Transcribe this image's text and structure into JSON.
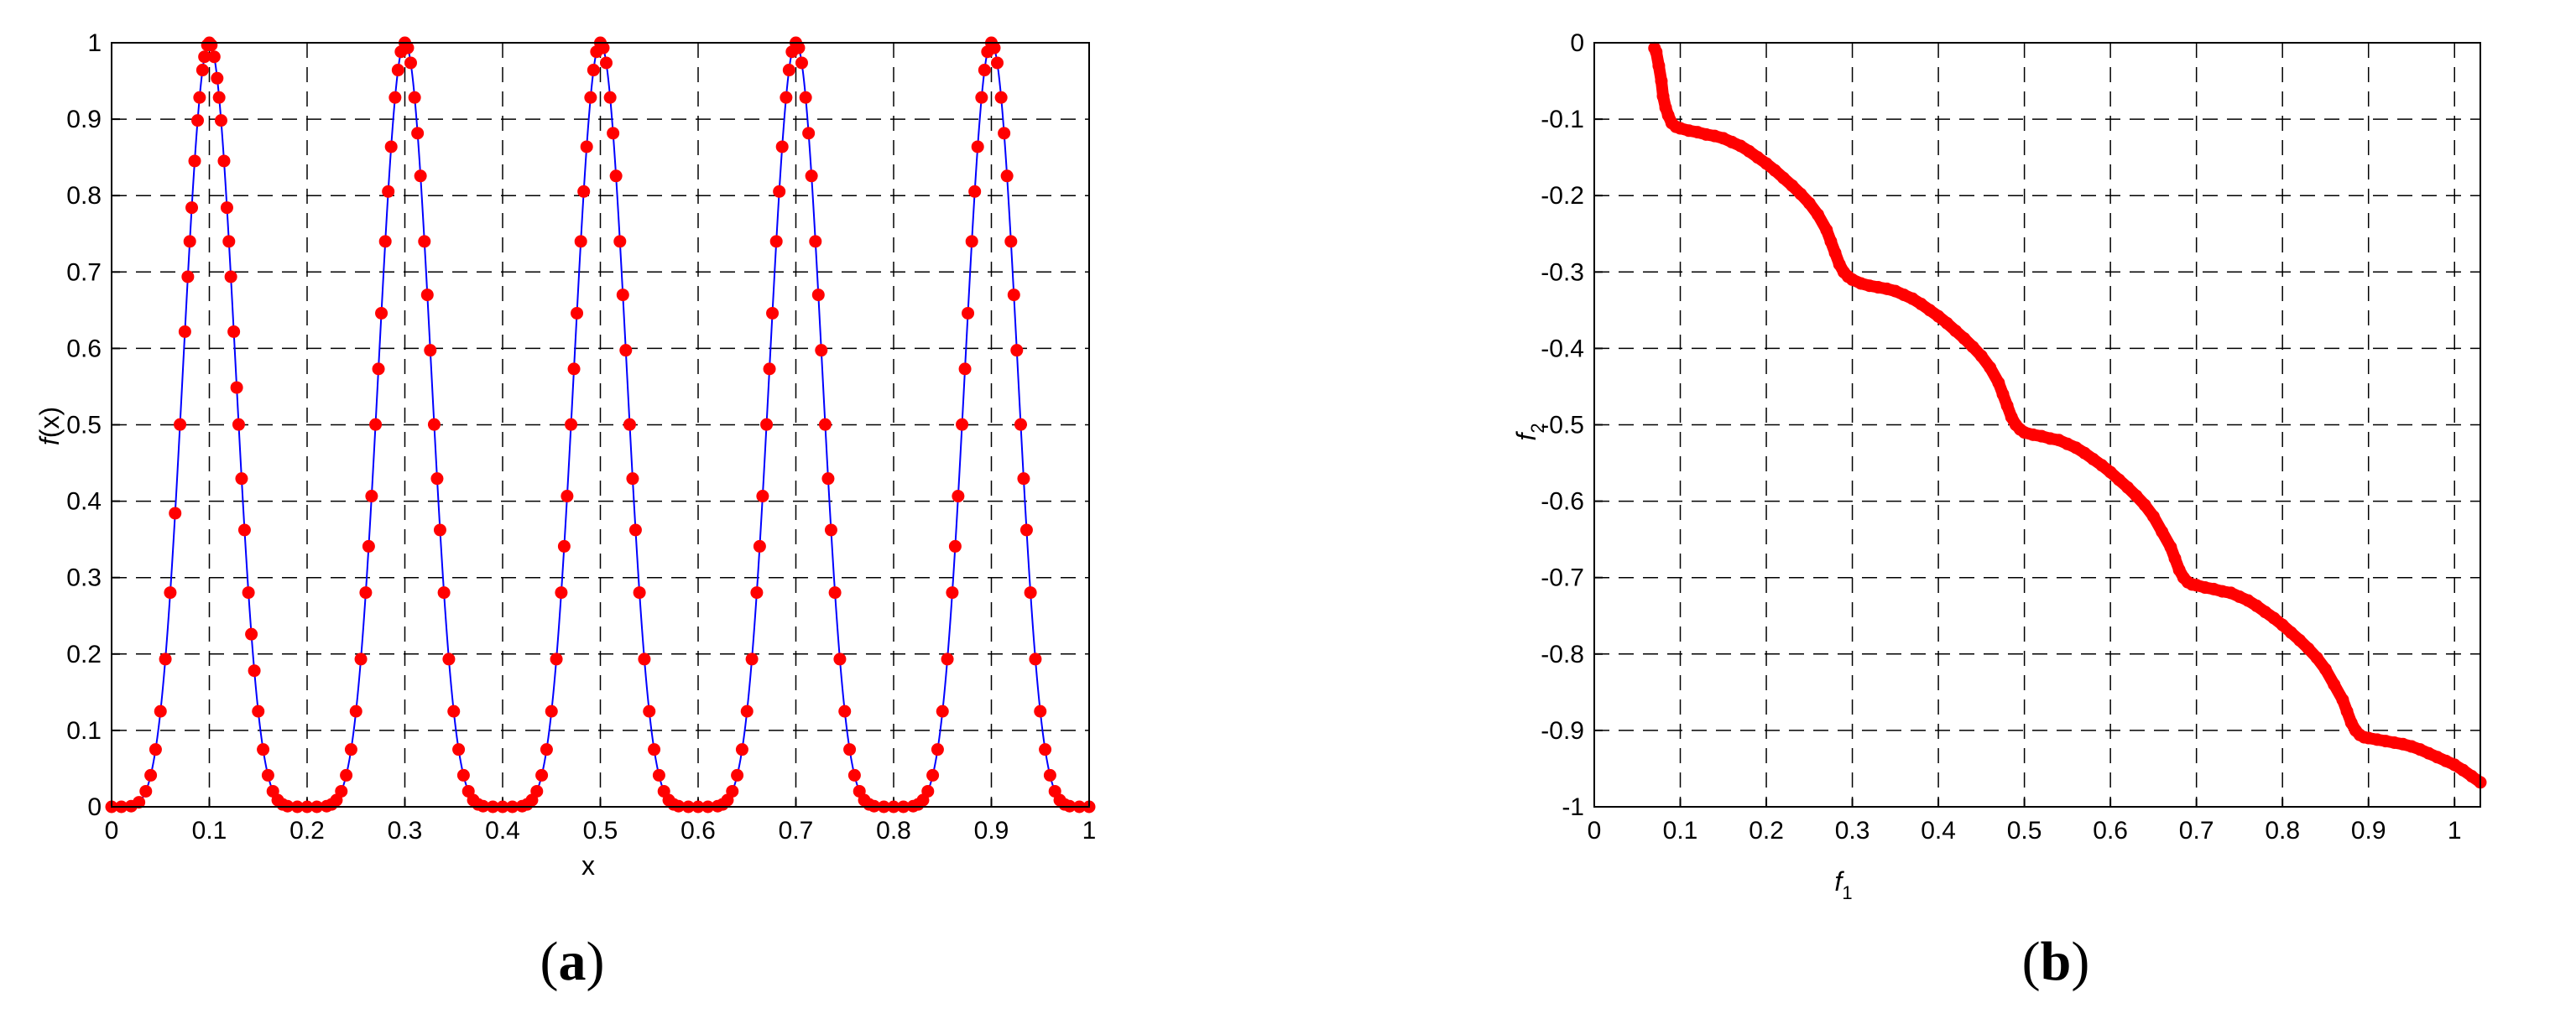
{
  "colors": {
    "curve": "#0000ff",
    "points": "#ff0000",
    "grid": "#000000",
    "axes": "#000000"
  },
  "chart_data": [
    {
      "type": "line",
      "panel_label": {
        "open": "(",
        "letter": "a",
        "close": ")"
      },
      "xlabel": "x",
      "ylabel": {
        "italic": "f",
        "rest": "(x)"
      },
      "xlim": [
        0,
        1
      ],
      "ylim": [
        0,
        1
      ],
      "xticks": [
        "0",
        "0.1",
        "0.2",
        "0.3",
        "0.4",
        "0.5",
        "0.6",
        "0.7",
        "0.8",
        "0.9",
        "1"
      ],
      "yticks": [
        "0",
        "0.1",
        "0.2",
        "0.3",
        "0.4",
        "0.5",
        "0.6",
        "0.7",
        "0.8",
        "0.9",
        "1"
      ],
      "grid": true,
      "series": [
        {
          "kind": "curve",
          "function": "sin^6(5*pi*x)",
          "x_range": [
            0,
            1
          ]
        },
        {
          "kind": "scatter",
          "x": [
            0.0,
            0.01,
            0.02,
            0.028,
            0.035,
            0.04,
            0.045,
            0.05,
            0.055,
            0.06,
            0.065,
            0.07,
            0.075,
            0.078,
            0.08,
            0.082,
            0.085,
            0.088,
            0.09,
            0.093,
            0.095,
            0.098,
            0.1,
            0.102,
            0.105,
            0.108,
            0.11,
            0.112,
            0.115,
            0.118,
            0.12,
            0.122,
            0.125,
            0.128,
            0.13,
            0.133,
            0.136,
            0.14,
            0.143,
            0.146,
            0.15,
            0.155,
            0.16,
            0.165,
            0.17,
            0.175,
            0.18,
            0.19,
            0.2,
            0.21,
            0.22,
            0.225,
            0.23,
            0.235,
            0.24,
            0.245,
            0.25,
            0.255,
            0.26,
            0.263,
            0.266,
            0.27,
            0.273,
            0.276,
            0.28,
            0.283,
            0.286,
            0.29,
            0.293,
            0.296,
            0.3,
            0.303,
            0.306,
            0.31,
            0.313,
            0.316,
            0.32,
            0.323,
            0.326,
            0.33,
            0.333,
            0.336,
            0.34,
            0.345,
            0.35,
            0.355,
            0.36,
            0.365,
            0.37,
            0.375,
            0.38,
            0.39,
            0.4,
            0.41,
            0.42,
            0.425,
            0.43,
            0.435,
            0.44,
            0.445,
            0.45,
            0.455,
            0.46,
            0.463,
            0.466,
            0.47,
            0.473,
            0.476,
            0.48,
            0.483,
            0.486,
            0.49,
            0.493,
            0.496,
            0.5,
            0.503,
            0.506,
            0.51,
            0.513,
            0.516,
            0.52,
            0.523,
            0.526,
            0.53,
            0.533,
            0.536,
            0.54,
            0.545,
            0.55,
            0.555,
            0.56,
            0.565,
            0.57,
            0.575,
            0.58,
            0.59,
            0.6,
            0.61,
            0.62,
            0.625,
            0.63,
            0.635,
            0.64,
            0.645,
            0.65,
            0.655,
            0.66,
            0.663,
            0.666,
            0.67,
            0.673,
            0.676,
            0.68,
            0.683,
            0.686,
            0.69,
            0.693,
            0.696,
            0.7,
            0.703,
            0.706,
            0.71,
            0.713,
            0.716,
            0.72,
            0.723,
            0.726,
            0.73,
            0.733,
            0.736,
            0.74,
            0.745,
            0.75,
            0.755,
            0.76,
            0.765,
            0.77,
            0.775,
            0.78,
            0.79,
            0.8,
            0.81,
            0.82,
            0.825,
            0.83,
            0.835,
            0.84,
            0.845,
            0.85,
            0.855,
            0.86,
            0.863,
            0.866,
            0.87,
            0.873,
            0.876,
            0.88,
            0.883,
            0.886,
            0.89,
            0.893,
            0.896,
            0.9,
            0.903,
            0.906,
            0.91,
            0.913,
            0.916,
            0.92,
            0.923,
            0.926,
            0.93,
            0.933,
            0.936,
            0.94,
            0.945,
            0.95,
            0.955,
            0.96,
            0.965,
            0.97,
            0.975,
            0.98,
            0.99,
            1.0
          ]
        }
      ]
    },
    {
      "type": "scatter",
      "panel_label": {
        "open": "(",
        "letter": "b",
        "close": ")"
      },
      "xlabel": {
        "italic": "f",
        "sub": "1"
      },
      "ylabel": {
        "italic": "f",
        "sub": "2"
      },
      "xlim": [
        0,
        1.03
      ],
      "ylim": [
        -1,
        0
      ],
      "xticks": [
        "0",
        "0.1",
        "0.2",
        "0.3",
        "0.4",
        "0.5",
        "0.6",
        "0.7",
        "0.8",
        "0.9",
        "1"
      ],
      "yticks": [
        "0",
        "-0.1",
        "-0.2",
        "-0.3",
        "-0.4",
        "-0.5",
        "-0.6",
        "-0.7",
        "-0.8",
        "-0.9",
        "-1"
      ],
      "grid": true,
      "series": [
        {
          "kind": "scatter",
          "x": [
            0.07,
            0.072,
            0.075,
            0.078,
            0.08,
            0.083,
            0.086,
            0.09,
            0.095,
            0.1,
            0.11,
            0.12,
            0.13,
            0.14,
            0.15,
            0.16,
            0.17,
            0.18,
            0.19,
            0.2,
            0.21,
            0.22,
            0.23,
            0.24,
            0.25,
            0.26,
            0.27,
            0.275,
            0.28,
            0.285,
            0.29,
            0.295,
            0.3,
            0.31,
            0.32,
            0.33,
            0.34,
            0.35,
            0.36,
            0.37,
            0.38,
            0.39,
            0.4,
            0.41,
            0.42,
            0.43,
            0.44,
            0.45,
            0.46,
            0.47,
            0.475,
            0.48,
            0.485,
            0.49,
            0.495,
            0.5,
            0.51,
            0.52,
            0.53,
            0.54,
            0.55,
            0.56,
            0.57,
            0.58,
            0.59,
            0.6,
            0.61,
            0.62,
            0.63,
            0.64,
            0.65,
            0.66,
            0.67,
            0.675,
            0.68,
            0.685,
            0.69,
            0.695,
            0.7,
            0.71,
            0.72,
            0.73,
            0.74,
            0.75,
            0.76,
            0.77,
            0.78,
            0.79,
            0.8,
            0.81,
            0.82,
            0.83,
            0.84,
            0.85,
            0.86,
            0.87,
            0.875,
            0.88,
            0.885,
            0.89,
            0.895,
            0.9,
            0.91,
            0.92,
            0.93,
            0.94,
            0.95,
            0.96,
            0.97,
            0.98,
            0.99,
            1.0,
            1.01,
            1.02,
            1.03
          ],
          "y": [
            -0.007,
            -0.012,
            -0.03,
            -0.05,
            -0.07,
            -0.085,
            -0.095,
            -0.105,
            -0.11,
            -0.112,
            -0.115,
            -0.117,
            -0.12,
            -0.122,
            -0.125,
            -0.13,
            -0.135,
            -0.142,
            -0.15,
            -0.158,
            -0.167,
            -0.177,
            -0.187,
            -0.198,
            -0.21,
            -0.225,
            -0.245,
            -0.26,
            -0.275,
            -0.29,
            -0.3,
            -0.306,
            -0.31,
            -0.315,
            -0.318,
            -0.32,
            -0.322,
            -0.325,
            -0.33,
            -0.335,
            -0.342,
            -0.35,
            -0.358,
            -0.367,
            -0.377,
            -0.387,
            -0.398,
            -0.41,
            -0.425,
            -0.445,
            -0.46,
            -0.475,
            -0.49,
            -0.5,
            -0.506,
            -0.51,
            -0.513,
            -0.515,
            -0.518,
            -0.52,
            -0.525,
            -0.53,
            -0.537,
            -0.545,
            -0.553,
            -0.562,
            -0.572,
            -0.582,
            -0.593,
            -0.605,
            -0.62,
            -0.64,
            -0.66,
            -0.675,
            -0.69,
            -0.7,
            -0.706,
            -0.709,
            -0.71,
            -0.713,
            -0.715,
            -0.718,
            -0.72,
            -0.725,
            -0.73,
            -0.737,
            -0.745,
            -0.753,
            -0.762,
            -0.772,
            -0.782,
            -0.793,
            -0.805,
            -0.82,
            -0.84,
            -0.86,
            -0.875,
            -0.89,
            -0.9,
            -0.906,
            -0.909,
            -0.91,
            -0.912,
            -0.914,
            -0.916,
            -0.918,
            -0.921,
            -0.925,
            -0.93,
            -0.935,
            -0.94,
            -0.945,
            -0.952,
            -0.96,
            -0.968
          ]
        }
      ]
    }
  ]
}
